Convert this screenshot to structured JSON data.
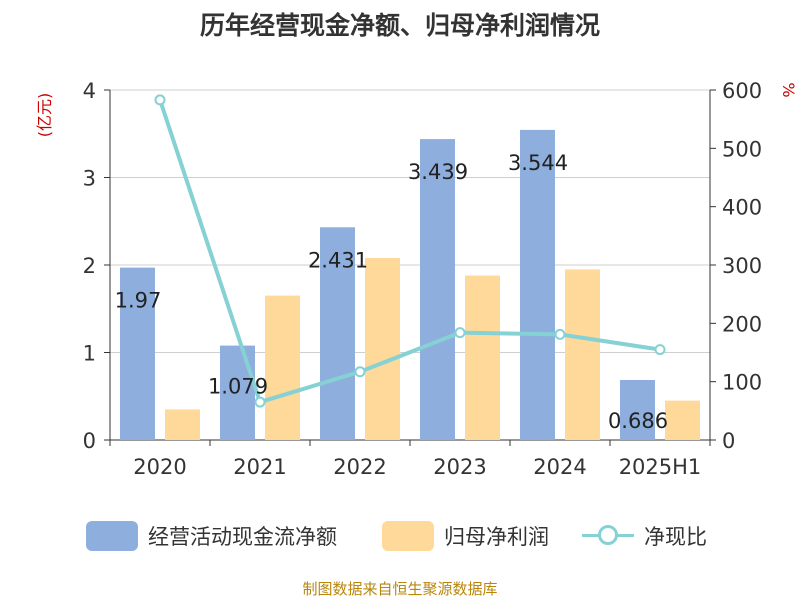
{
  "chart_data": {
    "type": "bar",
    "title": "历年经营现金净额、归母净利润情况",
    "categories": [
      "2020",
      "2021",
      "2022",
      "2023",
      "2024",
      "2025H1"
    ],
    "y_left": {
      "unit": "(亿元)",
      "range": [
        0,
        4
      ],
      "ticks": [
        "0",
        "1",
        "2",
        "3",
        "4"
      ]
    },
    "y_right": {
      "unit": "%",
      "range": [
        0,
        600
      ],
      "ticks": [
        "0",
        "100",
        "200",
        "300",
        "400",
        "500",
        "600"
      ]
    },
    "grid": true,
    "legend_position": "bottom",
    "series": [
      {
        "name": "经营活动现金流净额",
        "kind": "bar",
        "axis": "left",
        "color": "#8eaedd",
        "values": [
          1.97,
          1.079,
          2.431,
          3.439,
          3.544,
          0.686
        ],
        "labels": [
          "1.97",
          "1.079",
          "2.431",
          "3.439",
          "3.544",
          "0.686"
        ]
      },
      {
        "name": "归母净利润",
        "kind": "bar",
        "axis": "left",
        "color": "#fed999",
        "values": [
          0.35,
          1.65,
          2.08,
          1.88,
          1.95,
          0.45
        ]
      },
      {
        "name": "净现比",
        "kind": "line",
        "axis": "right",
        "color": "#85d1d4",
        "values": [
          583,
          65,
          117,
          184,
          181,
          155
        ]
      }
    ],
    "source": "制图数据来自恒生聚源数据库"
  }
}
